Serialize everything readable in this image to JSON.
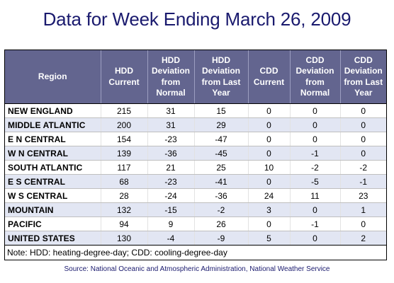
{
  "title": "Data for Week Ending March 26, 2009",
  "table": {
    "headers": [
      "Region",
      "HDD Current",
      "HDD Deviation from Normal",
      "HDD Deviation from Last Year",
      "CDD Current",
      "CDD Deviation from Normal",
      "CDD Deviation from Last Year"
    ],
    "rows": [
      [
        "NEW ENGLAND",
        "215",
        "31",
        "15",
        "0",
        "0",
        "0"
      ],
      [
        "MIDDLE ATLANTIC",
        "200",
        "31",
        "29",
        "0",
        "0",
        "0"
      ],
      [
        "E N CENTRAL",
        "154",
        "-23",
        "-47",
        "0",
        "0",
        "0"
      ],
      [
        "W N CENTRAL",
        "139",
        "-36",
        "-45",
        "0",
        "-1",
        "0"
      ],
      [
        "SOUTH ATLANTIC",
        "117",
        "21",
        "25",
        "10",
        "-2",
        "-2"
      ],
      [
        "E S CENTRAL",
        "68",
        "-23",
        "-41",
        "0",
        "-5",
        "-1"
      ],
      [
        "W S CENTRAL",
        "28",
        "-24",
        "-36",
        "24",
        "11",
        "23"
      ],
      [
        "MOUNTAIN",
        "132",
        "-15",
        "-2",
        "3",
        "0",
        "1"
      ],
      [
        "PACIFIC",
        "94",
        "9",
        "26",
        "0",
        "-1",
        "0"
      ],
      [
        "UNITED STATES",
        "130",
        "-4",
        "-9",
        "5",
        "0",
        "2"
      ]
    ]
  },
  "note": "Note: HDD: heating-degree-day; CDD: cooling-degree-day",
  "source": "Source:  National Oceanic and Atmospheric Administration, National Weather Service"
}
